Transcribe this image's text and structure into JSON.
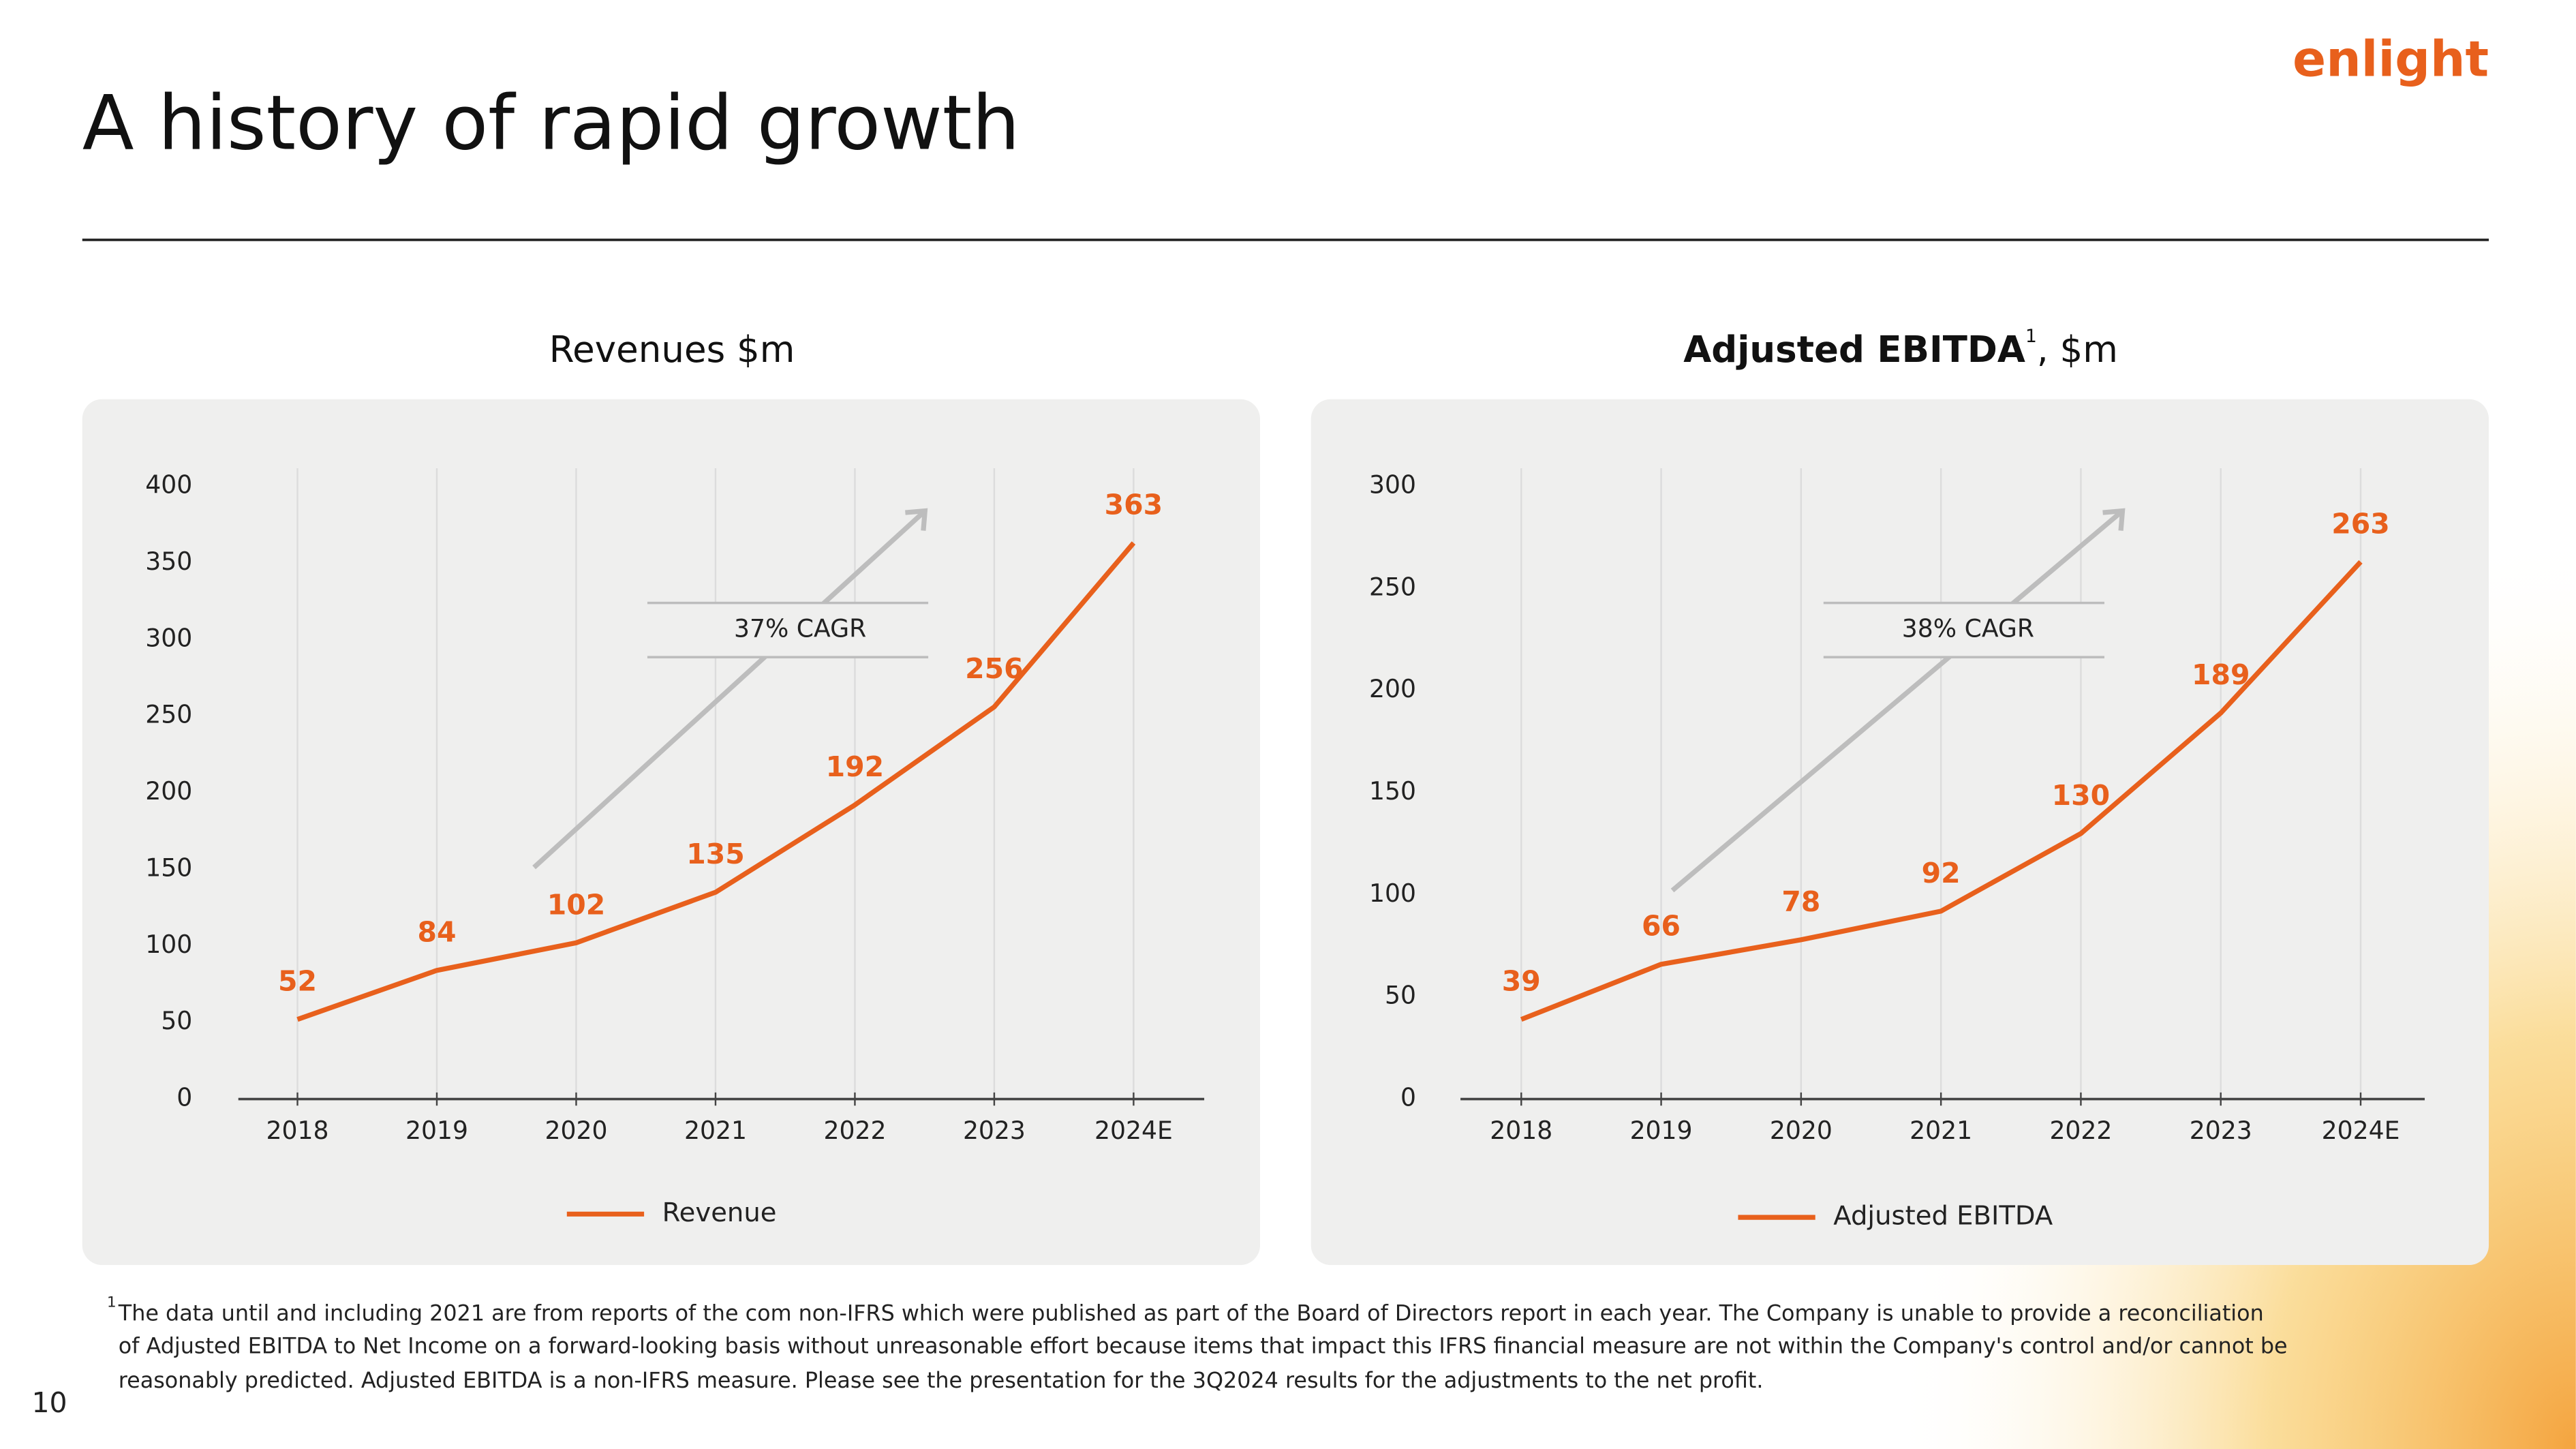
{
  "title": "A history of rapid growth",
  "logo": "enlight",
  "page_number": "10",
  "footnote": {
    "marker": "1",
    "lines": [
      "The data until and including 2021 are from reports of the com non-IFRS which were published as part of the Board of Directors report in each year. The Company is unable to provide a reconciliation",
      "of Adjusted EBITDA to Net Income on a forward-looking basis without unreasonable effort because items that impact this IFRS financial measure are not within the Company's control and/or cannot be",
      "reasonably predicted. Adjusted EBITDA is a non-IFRS measure. Please see the presentation for the 3Q2024 results for the adjustments to the net profit."
    ]
  },
  "chart_data": [
    {
      "type": "line",
      "title": "Revenues $m",
      "categories": [
        "2018",
        "2019",
        "2020",
        "2021",
        "2022",
        "2023",
        "2024E"
      ],
      "series": [
        {
          "name": "Revenue",
          "color": "#e8601c",
          "values": [
            52,
            84,
            102,
            135,
            192,
            256,
            363
          ]
        }
      ],
      "ylim": [
        0,
        400
      ],
      "yticks": [
        0,
        50,
        100,
        150,
        200,
        250,
        300,
        350,
        400
      ],
      "annotation": "37% CAGR",
      "grid": true
    },
    {
      "type": "line",
      "title": "Adjusted EBITDA",
      "title_superscript": "1",
      "title_suffix": ", $m",
      "categories": [
        "2018",
        "2019",
        "2020",
        "2021",
        "2022",
        "2023",
        "2024E"
      ],
      "series": [
        {
          "name": "Adjusted EBITDA",
          "color": "#e8601c",
          "values": [
            39,
            66,
            78,
            92,
            130,
            189,
            263
          ]
        }
      ],
      "ylim": [
        0,
        300
      ],
      "yticks": [
        0,
        50,
        100,
        150,
        200,
        250,
        300
      ],
      "annotation": "38% CAGR",
      "grid": true
    }
  ]
}
